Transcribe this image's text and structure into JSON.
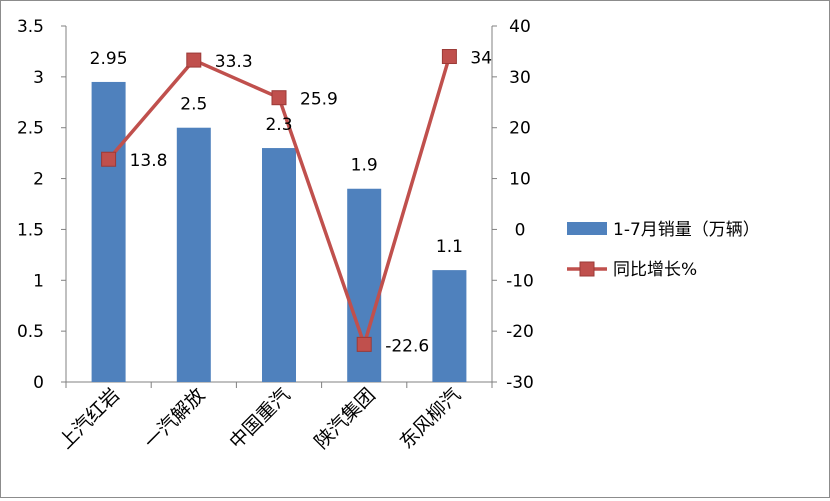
{
  "chart_data": {
    "type": "bar",
    "categories": [
      "上汽红岩",
      "一汽解放",
      "中国重汽",
      "陕汽集团",
      "东风柳汽"
    ],
    "series": [
      {
        "name": "1-7月销量（万辆）",
        "kind": "bar",
        "axis": "left",
        "color": "#4f81bd",
        "values": [
          2.95,
          2.5,
          2.3,
          1.9,
          1.1
        ],
        "labels": [
          "2.95",
          "2.5",
          "2.3",
          "1.9",
          "1.1"
        ]
      },
      {
        "name": "同比增长%",
        "kind": "line",
        "axis": "right",
        "color": "#c0504d",
        "values": [
          13.8,
          33.3,
          25.9,
          -22.6,
          34
        ],
        "labels": [
          "13.8",
          "33.3",
          "25.9",
          "-22.6",
          "34"
        ]
      }
    ],
    "y_left": {
      "range": [
        0,
        3.5
      ],
      "ticks": [
        0,
        0.5,
        1,
        1.5,
        2,
        2.5,
        3,
        3.5
      ],
      "tick_labels": [
        "0",
        "0.5",
        "1",
        "1.5",
        "2",
        "2.5",
        "3",
        "3.5"
      ]
    },
    "y_right": {
      "range": [
        -30,
        40
      ],
      "ticks": [
        -30,
        -20,
        -10,
        0,
        10,
        20,
        30,
        40
      ],
      "tick_labels": [
        "-30",
        "-20",
        "-10",
        "0",
        "10",
        "20",
        "30",
        "40"
      ]
    },
    "grid": false,
    "legend_position": "right"
  }
}
